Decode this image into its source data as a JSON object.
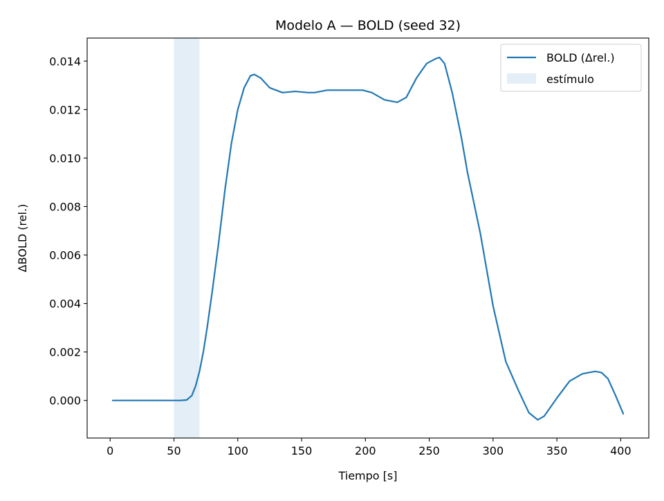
{
  "chart_data": {
    "type": "line",
    "title": "Modelo A — BOLD (seed 32)",
    "xlabel": "Tiempo [s]",
    "ylabel": "ΔBOLD (rel.)",
    "xlim": [
      -18,
      422
    ],
    "ylim": [
      -0.00155,
      0.01495
    ],
    "xticks": [
      0,
      50,
      100,
      150,
      200,
      250,
      300,
      350,
      400
    ],
    "yticks": [
      0.0,
      0.002,
      0.004,
      0.006,
      0.008,
      0.01,
      0.012,
      0.014
    ],
    "ytick_labels": [
      "0.000",
      "0.002",
      "0.004",
      "0.006",
      "0.008",
      "0.010",
      "0.012",
      "0.014"
    ],
    "grid": false,
    "legend": {
      "placement": "top-right",
      "entries": [
        "BOLD (Δrel.)",
        "estímulo"
      ]
    },
    "stimulus": {
      "name": "estímulo",
      "x_start": 50,
      "x_end": 70,
      "color": "#e3eef6"
    },
    "series": [
      {
        "name": "BOLD (Δrel.)",
        "color": "#1f77b4",
        "x": [
          2,
          20,
          40,
          55,
          60,
          64,
          67,
          70,
          73,
          76,
          80,
          85,
          90,
          95,
          100,
          105,
          110,
          113,
          118,
          125,
          135,
          145,
          155,
          160,
          170,
          180,
          190,
          198,
          205,
          215,
          225,
          232,
          240,
          248,
          255,
          258,
          262,
          268,
          275,
          280,
          290,
          300,
          310,
          320,
          328,
          335,
          340,
          350,
          360,
          370,
          380,
          385,
          390,
          396,
          402
        ],
        "y": [
          0.0,
          0.0,
          0.0,
          0.0,
          2e-05,
          0.0002,
          0.0006,
          0.0012,
          0.002,
          0.003,
          0.0045,
          0.0065,
          0.0087,
          0.0106,
          0.012,
          0.0129,
          0.0134,
          0.01345,
          0.0133,
          0.0129,
          0.0127,
          0.01275,
          0.0127,
          0.0127,
          0.0128,
          0.0128,
          0.0128,
          0.0128,
          0.0127,
          0.0124,
          0.0123,
          0.0125,
          0.0133,
          0.0139,
          0.0141,
          0.01415,
          0.0139,
          0.0127,
          0.0109,
          0.0094,
          0.0069,
          0.0039,
          0.0016,
          0.0004,
          -0.0005,
          -0.0008,
          -0.00065,
          0.0001,
          0.0008,
          0.0011,
          0.0012,
          0.00115,
          0.0009,
          0.0002,
          -0.00055
        ]
      }
    ]
  }
}
